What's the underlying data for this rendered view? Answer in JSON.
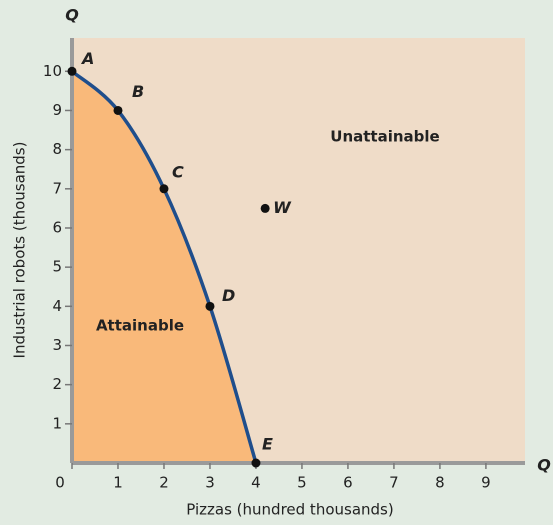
{
  "chart_data": {
    "type": "line",
    "x_label": "Pizzas (hundred thousands)",
    "y_label": "Industrial robots (thousands)",
    "x_axis_end": "Q",
    "y_axis_end": "Q",
    "x": [
      0,
      1,
      2,
      3,
      4
    ],
    "series": [
      {
        "color": "#1f4e8c",
        "values": [
          10,
          9,
          7,
          4,
          0
        ]
      }
    ],
    "point_labels": [
      "A",
      "B",
      "C",
      "D",
      "E"
    ],
    "points": [
      {
        "label": "W",
        "x": 4.2,
        "y": 6.5
      }
    ],
    "region_labels": [
      "Unattainable",
      "Attainable"
    ],
    "xlim": [
      0,
      9.85
    ],
    "ylim": [
      0,
      10.85
    ],
    "xticks": [
      0,
      1,
      2,
      3,
      4,
      5,
      6,
      7,
      8,
      9
    ],
    "yticks": [
      1,
      2,
      3,
      4,
      5,
      6,
      7,
      8,
      9,
      10
    ],
    "attainable_color": "#f9b97a",
    "unattainable_color": "#efdcc8"
  }
}
